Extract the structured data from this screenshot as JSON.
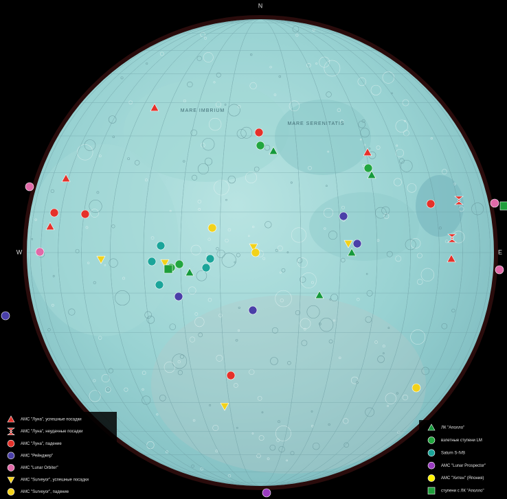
{
  "compass": {
    "north": "N",
    "west": "W",
    "east": "E"
  },
  "maria": [
    "MARE IMBRIUM",
    "MARE SERENITATIS"
  ],
  "legend": {
    "left": [
      "АМС \"Луна\", успешные посадки",
      "АМС \"Луна\", неудачные посадки",
      "АМС \"Луна\", падение",
      "АМС \"Рейнджер\"",
      "АМС \"Lunar Orbiter\"",
      "АМС \"Surveyor\", успешные посадки",
      "АМС \"Surveyor\", падение"
    ],
    "right": [
      "ЛК \"Аполло\"",
      "взлетные ступени LM",
      "Saturn S-IVB",
      "АМС \"Lunar Prospector\"",
      "АМС \"Хитен\" (Япония)",
      "ступени с ЛК \"Аполло\""
    ]
  }
}
